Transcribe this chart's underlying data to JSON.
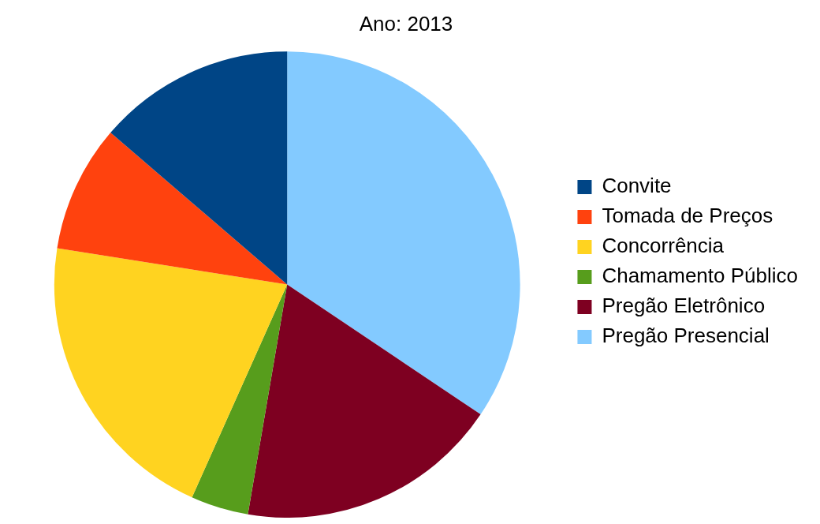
{
  "chart_data": {
    "type": "pie",
    "title": "Ano: 2013",
    "categories": [
      "Convite",
      "Tomada de Preços",
      "Concorrência",
      "Chamamento Público",
      "Pregão Eletrônico",
      "Pregão Presencial"
    ],
    "values": [
      13.7,
      8.8,
      20.8,
      4.0,
      18.3,
      34.4
    ],
    "colors": [
      "#004586",
      "#ff420e",
      "#ffd320",
      "#579d1c",
      "#7e0021",
      "#83caff"
    ],
    "legend": "right"
  }
}
